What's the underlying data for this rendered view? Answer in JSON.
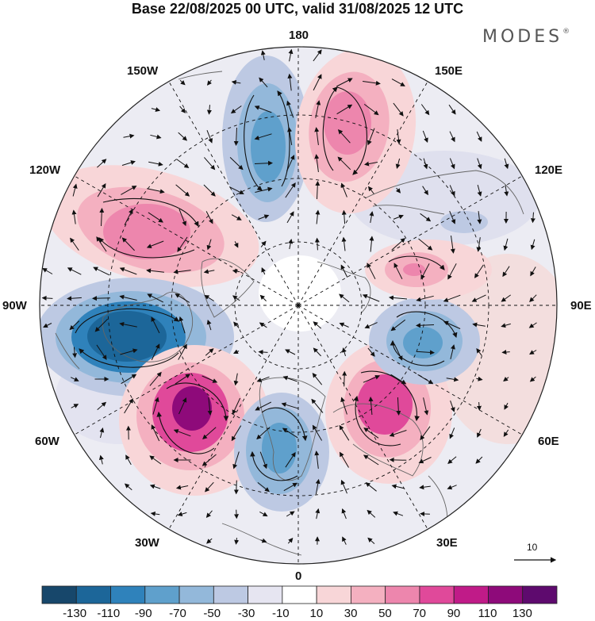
{
  "title": "Base 22/08/2025 00 UTC, valid 31/08/2025 12 UTC",
  "brand": "MODES",
  "brand_mark": "®",
  "longitude_labels": {
    "n180": "180",
    "w150": "150W",
    "e150": "150E",
    "w120": "120W",
    "e120": "120E",
    "w90": "90W",
    "e90": "90E",
    "w60": "60W",
    "e60": "60E",
    "w30": "30W",
    "e30": "30E",
    "s0": "0"
  },
  "vector_scale": {
    "label": "10"
  },
  "colorbar": {
    "ticks": [
      "-130",
      "-110",
      "-90",
      "-70",
      "-50",
      "-30",
      "-10",
      "10",
      "30",
      "50",
      "70",
      "90",
      "110",
      "130"
    ],
    "colors": [
      "#17476b",
      "#1c6699",
      "#2f82bb",
      "#5fa0cc",
      "#93b8da",
      "#bdc9e3",
      "#e6e5f1",
      "#ffffff",
      "#f8d6d8",
      "#f4b0c0",
      "#ed86ad",
      "#e0499a",
      "#c01b88",
      "#8e0a7a",
      "#5e0a6e"
    ]
  },
  "anomaly_cells": [
    {
      "name": "north-negative",
      "sign": "negative",
      "peak": -75
    },
    {
      "name": "north-east-positive",
      "sign": "positive",
      "peak": 75
    },
    {
      "name": "north-west-positive",
      "sign": "positive",
      "peak": 75
    },
    {
      "name": "west-negative",
      "sign": "negative",
      "peak": -110
    },
    {
      "name": "south-west-positive",
      "sign": "positive",
      "peak": 110
    },
    {
      "name": "south-negative",
      "sign": "negative",
      "peak": -70
    },
    {
      "name": "south-east-positive",
      "sign": "positive",
      "peak": 80
    },
    {
      "name": "east-negative",
      "sign": "negative",
      "peak": -70
    },
    {
      "name": "east-positive",
      "sign": "positive",
      "peak": 60
    },
    {
      "name": "north-east-weak-negative",
      "sign": "negative",
      "peak": -30
    }
  ]
}
